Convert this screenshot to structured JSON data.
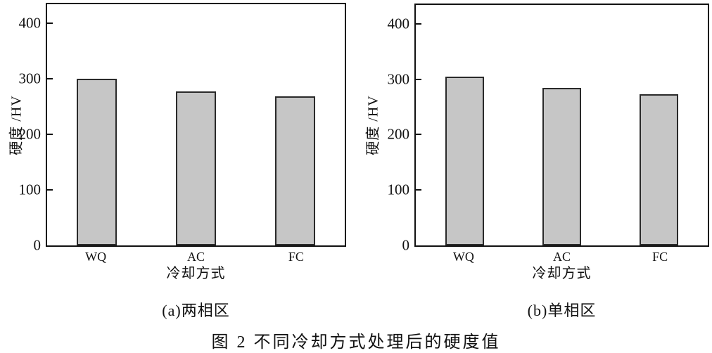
{
  "figure": {
    "caption": "图 2 不同冷却方式处理后的硬度值"
  },
  "colors": {
    "background": "#ffffff",
    "bar_fill": "#c6c6c6",
    "bar_border": "#2a2a2a",
    "axis": "#111111",
    "text": "#111111"
  },
  "chart_data": [
    {
      "type": "bar",
      "subcaption": "(a)两相区",
      "categories": [
        "WQ",
        "AC",
        "FC"
      ],
      "values": [
        300,
        277,
        268
      ],
      "title": "",
      "xlabel": "冷却方式",
      "ylabel": "硬度 /HV",
      "yticks": [
        0,
        100,
        200,
        300,
        400
      ],
      "ylim": [
        0,
        434
      ],
      "grid": false,
      "legend": "none"
    },
    {
      "type": "bar",
      "subcaption": "(b)单相区",
      "categories": [
        "WQ",
        "AC",
        "FC"
      ],
      "values": [
        305,
        284,
        273
      ],
      "title": "",
      "xlabel": "冷却方式",
      "ylabel": "硬度 /HV",
      "yticks": [
        0,
        100,
        200,
        300,
        400
      ],
      "ylim": [
        0,
        434
      ],
      "grid": false,
      "legend": "none"
    }
  ]
}
